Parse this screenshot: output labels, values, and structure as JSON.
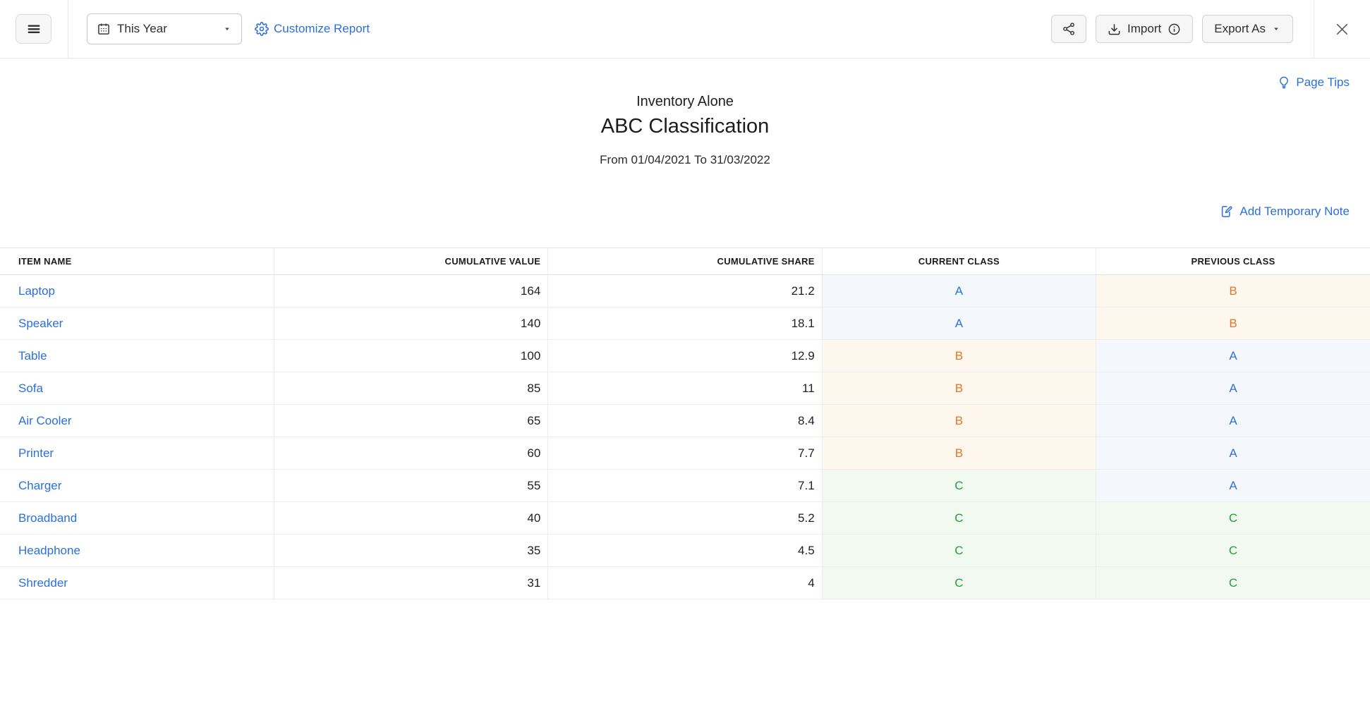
{
  "colors": {
    "link": "#2b6fdd",
    "text": "#1f1f1f"
  },
  "toolbar": {
    "date_filter_value": "This Year",
    "customize_label": "Customize Report",
    "import_label": "Import",
    "export_label": "Export As"
  },
  "icons": [
    "hamburger-icon",
    "calendar-icon",
    "caret-down-icon",
    "gear-icon",
    "share-icon",
    "download-icon",
    "info-icon",
    "close-icon",
    "bulb-icon",
    "note-pencil-icon"
  ],
  "page": {
    "page_tips_label": "Page Tips",
    "org_name": "Inventory Alone",
    "report_title": "ABC Classification",
    "date_range": "From 01/04/2021 To 31/03/2022",
    "add_note_label": "Add Temporary Note"
  },
  "table": {
    "columns": [
      "ITEM NAME",
      "CUMULATIVE VALUE",
      "CUMULATIVE SHARE",
      "CURRENT CLASS",
      "PREVIOUS CLASS"
    ],
    "rows": [
      {
        "item": "Laptop",
        "cumulative_value": "164",
        "cumulative_share": "21.2",
        "current_class": "A",
        "previous_class": "B"
      },
      {
        "item": "Speaker",
        "cumulative_value": "140",
        "cumulative_share": "18.1",
        "current_class": "A",
        "previous_class": "B"
      },
      {
        "item": "Table",
        "cumulative_value": "100",
        "cumulative_share": "12.9",
        "current_class": "B",
        "previous_class": "A"
      },
      {
        "item": "Sofa",
        "cumulative_value": "85",
        "cumulative_share": "11",
        "current_class": "B",
        "previous_class": "A"
      },
      {
        "item": "Air Cooler",
        "cumulative_value": "65",
        "cumulative_share": "8.4",
        "current_class": "B",
        "previous_class": "A"
      },
      {
        "item": "Printer",
        "cumulative_value": "60",
        "cumulative_share": "7.7",
        "current_class": "B",
        "previous_class": "A"
      },
      {
        "item": "Charger",
        "cumulative_value": "55",
        "cumulative_share": "7.1",
        "current_class": "C",
        "previous_class": "A"
      },
      {
        "item": "Broadband",
        "cumulative_value": "40",
        "cumulative_share": "5.2",
        "current_class": "C",
        "previous_class": "C"
      },
      {
        "item": "Headphone",
        "cumulative_value": "35",
        "cumulative_share": "4.5",
        "current_class": "C",
        "previous_class": "C"
      },
      {
        "item": "Shredder",
        "cumulative_value": "31",
        "cumulative_share": "4",
        "current_class": "C",
        "previous_class": "C"
      }
    ]
  },
  "class_styles": {
    "A": {
      "color": "#2e6fdf",
      "bg": "#f4f8fd"
    },
    "B": {
      "color": "#e0762a",
      "bg": "#fdf7ee"
    },
    "C": {
      "color": "#21a038",
      "bg": "#f1f9f1"
    }
  }
}
